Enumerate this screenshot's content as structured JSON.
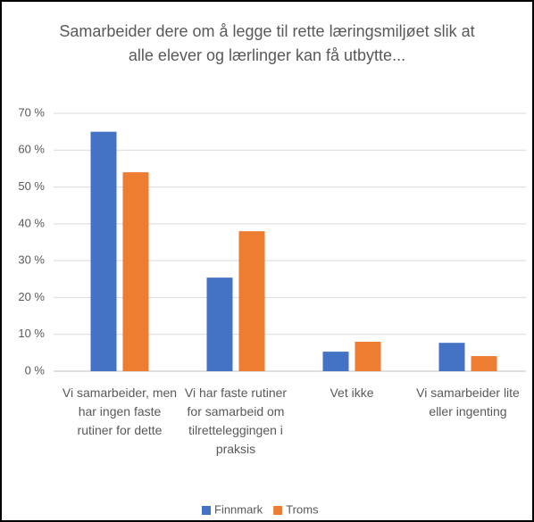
{
  "chart_data": {
    "type": "bar",
    "title": "Samarbeider dere om å legge til rette læringsmiljøet slik at alle elever og lærlinger kan få utbytte...",
    "categories": [
      "Vi samarbeider, men har ingen faste rutiner for dette",
      "Vi har faste rutiner for samarbeid om tilretteleggingen i praksis",
      "Vet ikke",
      "Vi samarbeider lite eller ingenting"
    ],
    "series": [
      {
        "name": "Finnmark",
        "color": "#4472c4",
        "values": [
          65,
          25.4,
          5.3,
          7.7
        ]
      },
      {
        "name": "Troms",
        "color": "#ed7d31",
        "values": [
          54,
          38,
          8,
          4.1
        ]
      }
    ],
    "ylim": [
      0,
      70
    ],
    "yticks": [
      {
        "value": 0,
        "label": "0 %"
      },
      {
        "value": 10,
        "label": "10 %"
      },
      {
        "value": 20,
        "label": "20 %"
      },
      {
        "value": 30,
        "label": "30 %"
      },
      {
        "value": 40,
        "label": "40 %"
      },
      {
        "value": 50,
        "label": "50 %"
      },
      {
        "value": 60,
        "label": "60 %"
      },
      {
        "value": 70,
        "label": "70 %"
      }
    ],
    "grid": true,
    "legend": "bottom"
  }
}
